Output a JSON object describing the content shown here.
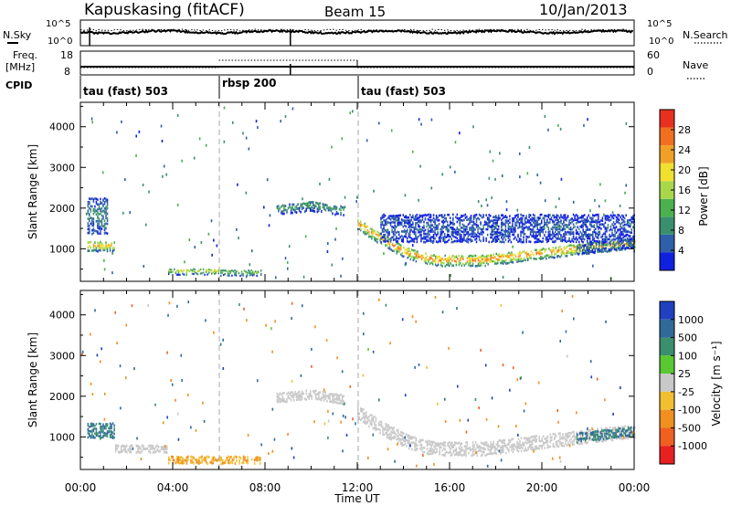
{
  "header": {
    "station": "Kapuskasing (fitACF)",
    "beam": "Beam 15",
    "date": "10/Jan/2013"
  },
  "sky_panel": {
    "left_label": "N.Sky",
    "right_label": "N.Search",
    "left_ticks": [
      "10^5",
      "10^0"
    ],
    "right_ticks": [
      "10^5",
      "10^0"
    ]
  },
  "freq_panel": {
    "left_label_1": "Freq.",
    "left_label_2": "[MHz]",
    "right_label": "Nave",
    "left_ticks": [
      "18",
      "8"
    ],
    "right_ticks": [
      "60",
      "0"
    ]
  },
  "cpid_panel": {
    "label": "CPID",
    "modes": [
      {
        "name": "tau (fast) 503",
        "start": 0
      },
      {
        "name": "rbsp 200",
        "start": 6
      },
      {
        "name": "tau (fast) 503",
        "start": 12
      }
    ]
  },
  "power_panel": {
    "ylabel": "Slant Range [km]",
    "yticks": [
      "1000",
      "2000",
      "3000",
      "4000"
    ],
    "colorbar_label": "Power [dB]",
    "colorbar_ticks": [
      "4",
      "8",
      "12",
      "16",
      "20",
      "24",
      "28"
    ],
    "colors": [
      "#1020e0",
      "#2f5fa8",
      "#3a8f6e",
      "#4caf50",
      "#a8d84a",
      "#f0e030",
      "#f0a028",
      "#f07020",
      "#e83020"
    ]
  },
  "velocity_panel": {
    "ylabel": "Slant Range [km]",
    "yticks": [
      "1000",
      "2000",
      "3000",
      "4000"
    ],
    "colorbar_label": "Velocity [m s⁻¹]",
    "colorbar_ticks": [
      "1000",
      "500",
      "100",
      "25",
      "-25",
      "-100",
      "-500",
      "-1000"
    ],
    "colors": [
      "#2040c0",
      "#2f6a9a",
      "#3a8f6e",
      "#5ac832",
      "#c8c8c8",
      "#f0c030",
      "#f09020",
      "#f06020",
      "#e82020"
    ]
  },
  "xaxis": {
    "label": "Time UT",
    "ticks": [
      "00:00",
      "04:00",
      "08:00",
      "12:00",
      "16:00",
      "20:00",
      "00:00"
    ]
  },
  "chart_data": [
    {
      "type": "heatmap",
      "title": "Power",
      "xlabel": "Time UT",
      "ylabel": "Slant Range [km]",
      "xlim": [
        0,
        24
      ],
      "ylim": [
        200,
        4600
      ],
      "colorbar": {
        "label": "Power [dB]",
        "range": [
          0,
          30
        ]
      },
      "echo_bands": [
        {
          "t_start": 0.3,
          "t_end": 1.5,
          "range_center_km": 1050,
          "range_width_km": 250,
          "power_db": 22
        },
        {
          "t_start": 0.3,
          "t_end": 1.2,
          "range_center_km": 1800,
          "range_width_km": 900,
          "power_db": 8
        },
        {
          "t_start": 3.8,
          "t_end": 6.0,
          "range_center_km": 430,
          "range_width_km": 150,
          "power_db": 18
        },
        {
          "t_start": 6.0,
          "t_end": 7.8,
          "range_center_km": 400,
          "range_width_km": 150,
          "power_db": 14
        },
        {
          "t_start": 8.5,
          "t_end": 11.5,
          "range_center_km": 1950,
          "range_width_km": 250,
          "power_db": 10
        },
        {
          "t_start": 12.0,
          "t_end": 24.0,
          "range_center_km": 1000,
          "range_width_km": 280,
          "power_db": 24
        },
        {
          "t_start": 13.0,
          "t_end": 24.0,
          "range_center_km": 1500,
          "range_width_km": 700,
          "power_db": 5
        },
        {
          "t_start": 21.5,
          "t_end": 24.0,
          "range_center_km": 2700,
          "range_width_km": 250,
          "power_db": 8
        }
      ]
    },
    {
      "type": "heatmap",
      "title": "Velocity",
      "xlabel": "Time UT",
      "ylabel": "Slant Range [km]",
      "xlim": [
        0,
        24
      ],
      "ylim": [
        200,
        4600
      ],
      "colorbar": {
        "label": "Velocity [m s⁻¹]",
        "range": [
          -1000,
          1000
        ]
      },
      "echo_bands": [
        {
          "t_start": 0.3,
          "t_end": 1.5,
          "range_center_km": 1150,
          "range_width_km": 400,
          "velocity": 100
        },
        {
          "t_start": 1.5,
          "t_end": 3.8,
          "range_center_km": 700,
          "range_width_km": 200,
          "velocity": 0
        },
        {
          "t_start": 3.8,
          "t_end": 7.8,
          "range_center_km": 430,
          "range_width_km": 200,
          "velocity": -100
        },
        {
          "t_start": 8.5,
          "t_end": 11.5,
          "range_center_km": 2000,
          "range_width_km": 250,
          "velocity": 0
        },
        {
          "t_start": 12.0,
          "t_end": 24.0,
          "range_center_km": 1050,
          "range_width_km": 350,
          "velocity": 0
        },
        {
          "t_start": 21.5,
          "t_end": 24.0,
          "range_center_km": 2700,
          "range_width_km": 250,
          "velocity": 100
        }
      ]
    }
  ]
}
